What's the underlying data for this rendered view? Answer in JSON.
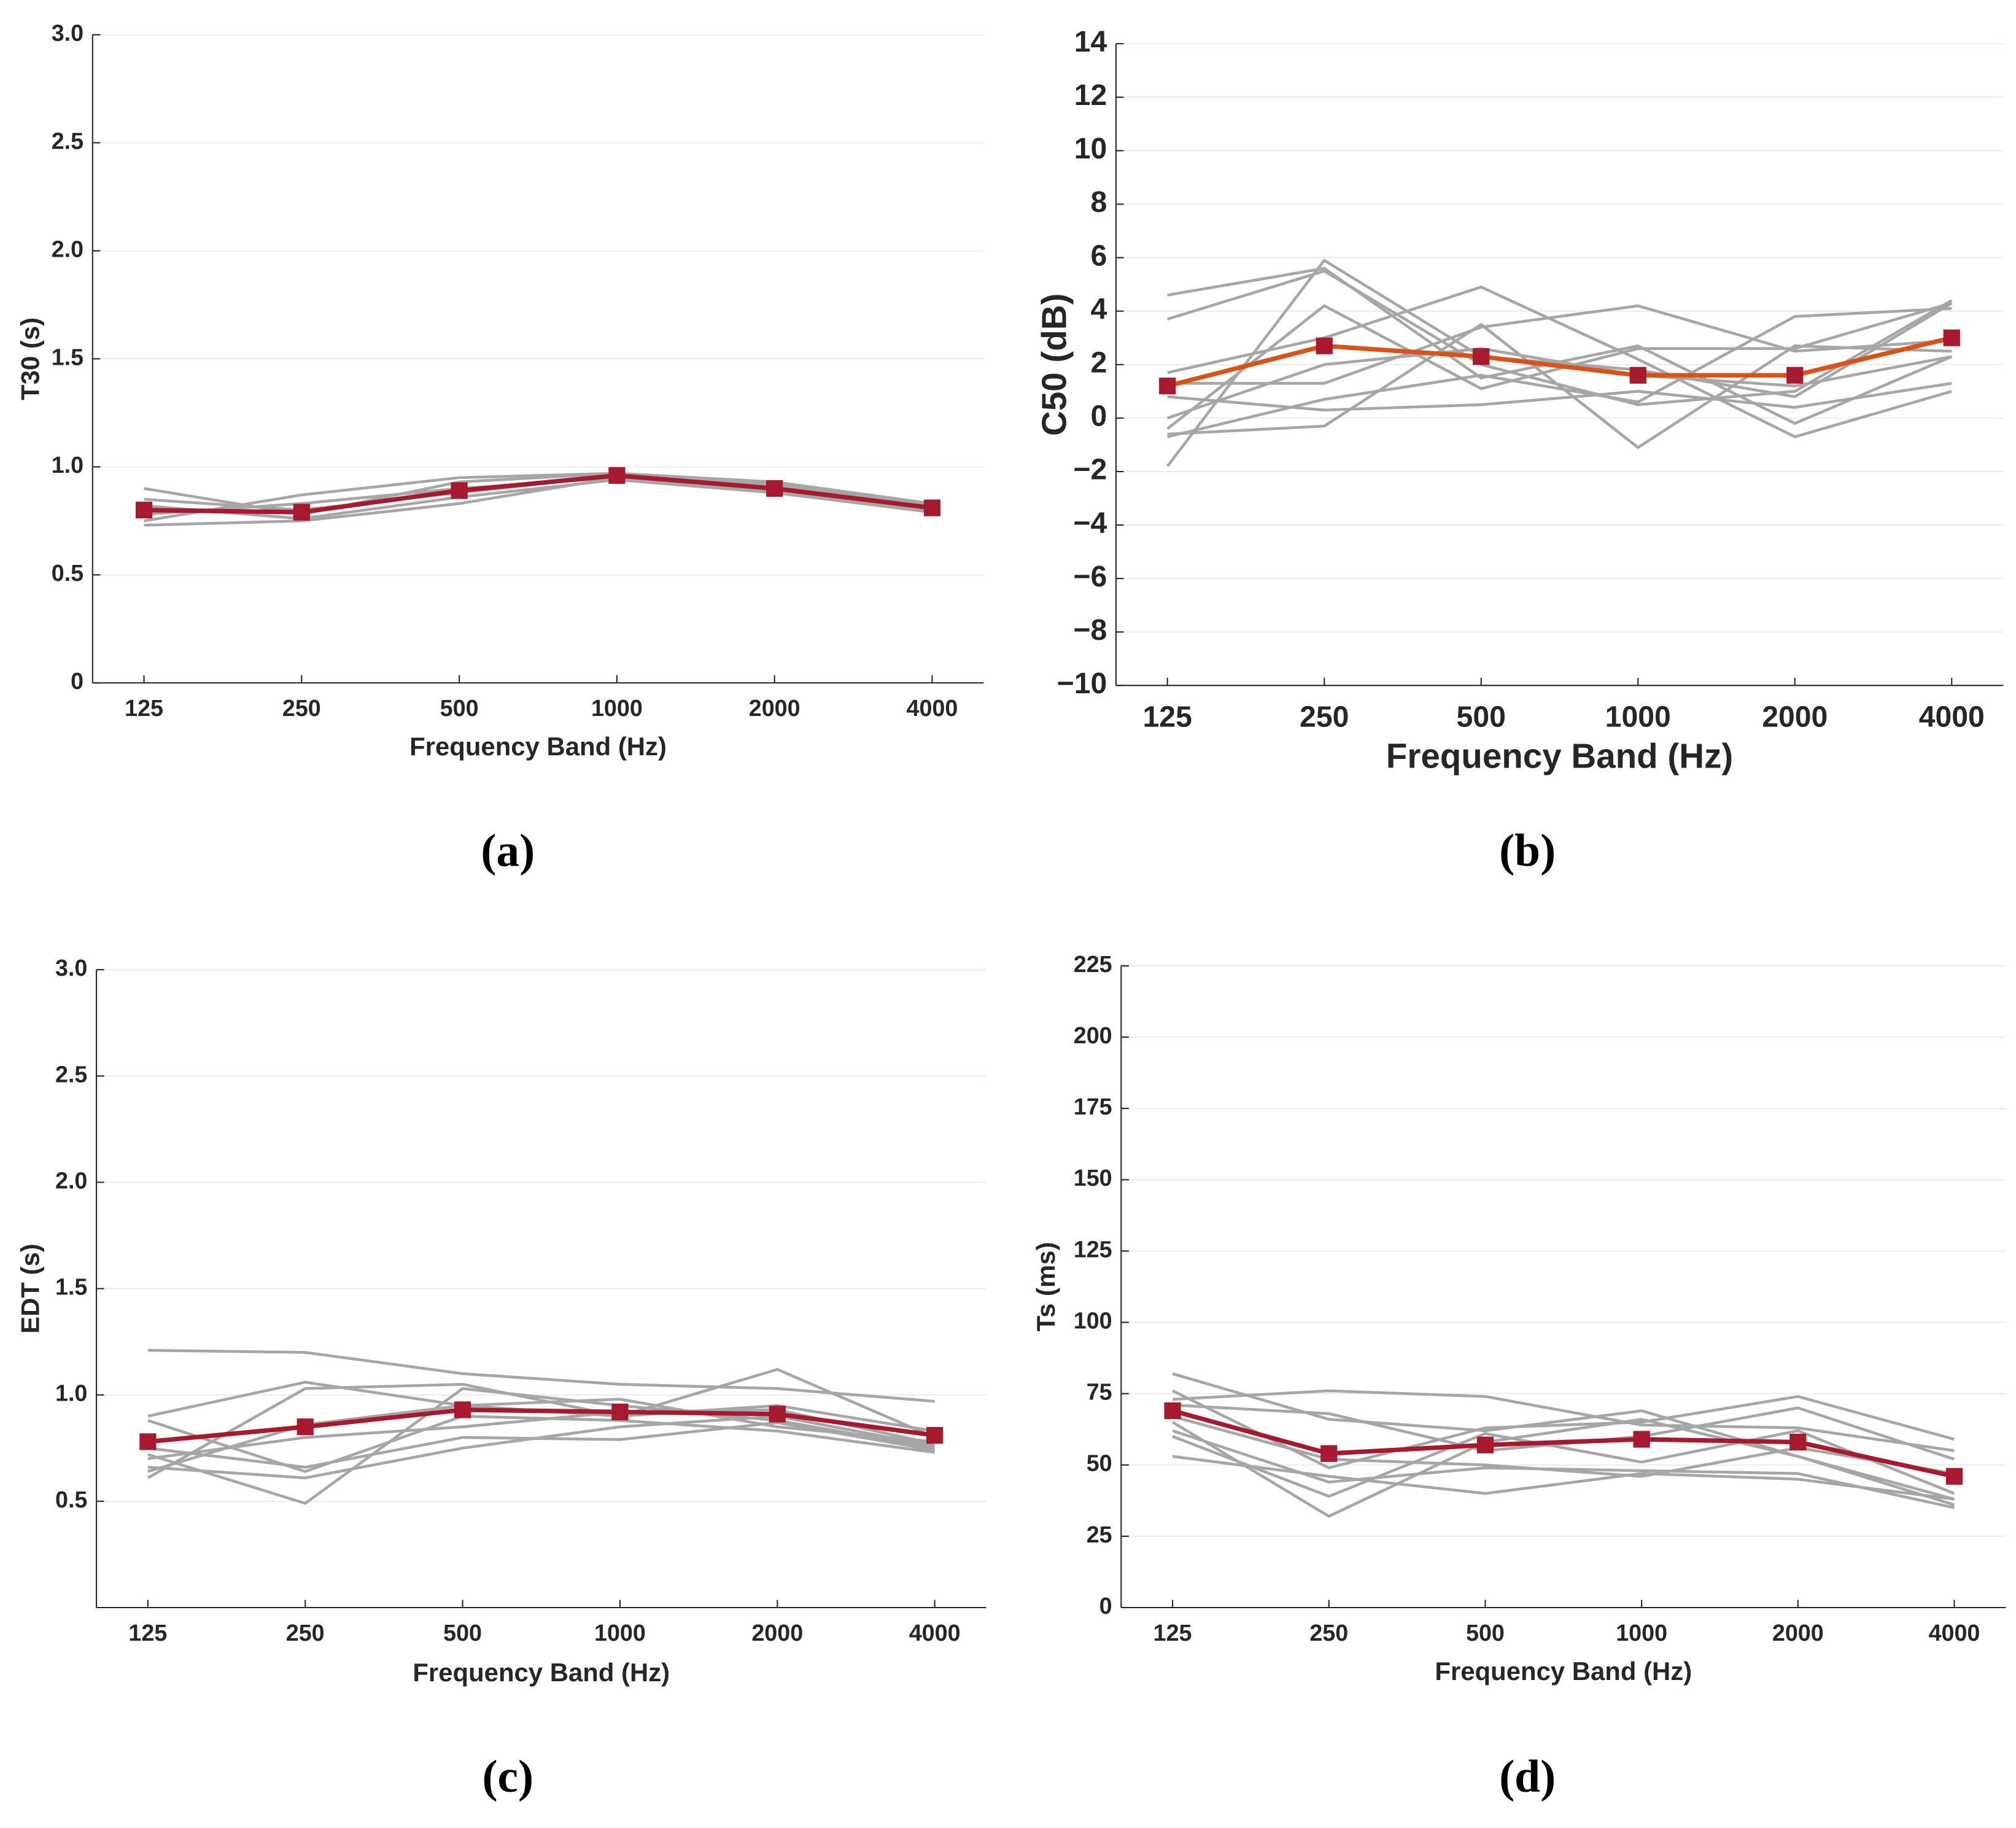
{
  "chart_data": [
    {
      "type": "line",
      "caption": "(a)",
      "x_label": "Frequency Band (Hz)",
      "y_label": "T30 (s)",
      "categories": [
        "125",
        "250",
        "500",
        "1000",
        "2000",
        "4000"
      ],
      "ylim": [
        0,
        3
      ],
      "yticks": [
        0,
        {
          "value": 0.5,
          "label": "0.5"
        },
        {
          "value": 1,
          "label": "1.0"
        },
        {
          "value": 1.5,
          "label": "1.5"
        },
        {
          "value": 2,
          "label": "2.0"
        },
        {
          "value": 2.5,
          "label": "2.5"
        },
        {
          "value": 3,
          "label": "3.0"
        }
      ],
      "grid": true,
      "series": [
        {
          "color": "#a6a6a6",
          "values": [
            0.9,
            0.78,
            0.93,
            0.97,
            0.93,
            0.83
          ]
        },
        {
          "color": "#a6a6a6",
          "values": [
            0.73,
            0.75,
            0.83,
            0.95,
            0.89,
            0.8
          ]
        },
        {
          "color": "#a6a6a6",
          "values": [
            0.75,
            0.87,
            0.95,
            0.97,
            0.92,
            0.82
          ]
        },
        {
          "color": "#a6a6a6",
          "values": [
            0.85,
            0.8,
            0.88,
            0.96,
            0.9,
            0.81
          ]
        },
        {
          "color": "#a6a6a6",
          "values": [
            0.78,
            0.83,
            0.9,
            0.95,
            0.91,
            0.8
          ]
        },
        {
          "color": "#a6a6a6",
          "values": [
            0.82,
            0.76,
            0.86,
            0.94,
            0.88,
            0.79
          ]
        },
        {
          "color": "#a6192e",
          "marker": "square",
          "marker_color": "#a6192e",
          "values": [
            0.8,
            0.79,
            0.89,
            0.96,
            0.9,
            0.81
          ]
        }
      ]
    },
    {
      "type": "line",
      "caption": "(b)",
      "x_label": "Frequency Band (Hz)",
      "y_label": "C50 (dB)",
      "categories": [
        "125",
        "250",
        "500",
        "1000",
        "2000",
        "4000"
      ],
      "ylim": [
        -10,
        14
      ],
      "yticks": [
        {
          "value": -10,
          "label": "−10"
        },
        {
          "value": -8,
          "label": "−8"
        },
        {
          "value": -6,
          "label": "−6"
        },
        {
          "value": -4,
          "label": "−4"
        },
        {
          "value": -2,
          "label": "−2"
        },
        0,
        2,
        4,
        6,
        8,
        10,
        12,
        14
      ],
      "grid": true,
      "series": [
        {
          "color": "#a6a6a6",
          "values": [
            4.6,
            5.6,
            1.5,
            2.7,
            -0.2,
            2.3
          ]
        },
        {
          "color": "#a6a6a6",
          "values": [
            3.7,
            5.5,
            2.0,
            0.5,
            1.0,
            4.4
          ]
        },
        {
          "color": "#a6a6a6",
          "values": [
            -1.8,
            5.9,
            2.3,
            1.8,
            0.8,
            4.3
          ]
        },
        {
          "color": "#a6a6a6",
          "values": [
            -0.4,
            4.2,
            1.1,
            2.6,
            2.6,
            4.3
          ]
        },
        {
          "color": "#a6a6a6",
          "values": [
            0.8,
            0.3,
            0.5,
            1.0,
            0.4,
            1.3
          ]
        },
        {
          "color": "#a6a6a6",
          "values": [
            -0.6,
            -0.3,
            3.5,
            -1.1,
            2.7,
            2.5
          ]
        },
        {
          "color": "#a6a6a6",
          "values": [
            1.7,
            3.0,
            4.9,
            2.2,
            -0.7,
            1.0
          ]
        },
        {
          "color": "#a6a6a6",
          "values": [
            1.3,
            1.3,
            3.4,
            4.2,
            2.5,
            2.9
          ]
        },
        {
          "color": "#a6a6a6",
          "values": [
            -0.7,
            0.7,
            1.6,
            0.6,
            3.8,
            4.1
          ]
        },
        {
          "color": "#a6a6a6",
          "values": [
            0.0,
            2.0,
            2.6,
            1.6,
            1.2,
            2.3
          ]
        },
        {
          "color": "#d95319",
          "marker": "square",
          "marker_color": "#a6192e",
          "values": [
            1.2,
            2.7,
            2.3,
            1.6,
            1.6,
            3.0
          ]
        }
      ]
    },
    {
      "type": "line",
      "caption": "(c)",
      "x_label": "Frequency Band (Hz)",
      "y_label": "EDT (s)",
      "categories": [
        "125",
        "250",
        "500",
        "1000",
        "2000",
        "4000"
      ],
      "ylim": [
        0,
        3
      ],
      "yticks": [
        {
          "value": 0.5,
          "label": "0.5"
        },
        {
          "value": 1,
          "label": "1.0"
        },
        {
          "value": 1.5,
          "label": "1.5"
        },
        {
          "value": 2,
          "label": "2.0"
        },
        {
          "value": 2.5,
          "label": "2.5"
        },
        {
          "value": 3,
          "label": "3.0"
        }
      ],
      "grid": true,
      "series": [
        {
          "color": "#a6a6a6",
          "values": [
            1.21,
            1.2,
            1.1,
            1.05,
            1.03,
            0.97
          ]
        },
        {
          "color": "#a6a6a6",
          "values": [
            0.9,
            1.06,
            0.95,
            0.98,
            0.85,
            0.78
          ]
        },
        {
          "color": "#a6a6a6",
          "values": [
            0.61,
            1.03,
            1.05,
            0.9,
            1.12,
            0.8
          ]
        },
        {
          "color": "#a6a6a6",
          "values": [
            0.72,
            0.49,
            1.03,
            0.95,
            0.88,
            0.75
          ]
        },
        {
          "color": "#a6a6a6",
          "values": [
            0.88,
            0.64,
            0.9,
            0.88,
            0.83,
            0.73
          ]
        },
        {
          "color": "#a6a6a6",
          "values": [
            0.66,
            0.61,
            0.75,
            0.85,
            0.9,
            0.76
          ]
        },
        {
          "color": "#a6a6a6",
          "values": [
            0.75,
            0.66,
            0.8,
            0.79,
            0.87,
            0.74
          ]
        },
        {
          "color": "#a6a6a6",
          "values": [
            0.7,
            0.8,
            0.85,
            0.92,
            0.93,
            0.77
          ]
        },
        {
          "color": "#a6a6a6",
          "values": [
            0.64,
            0.86,
            0.95,
            0.9,
            0.95,
            0.83
          ]
        },
        {
          "color": "#a6192e",
          "marker": "square",
          "marker_color": "#a6192e",
          "values": [
            0.78,
            0.85,
            0.93,
            0.92,
            0.91,
            0.81
          ]
        }
      ]
    },
    {
      "type": "line",
      "caption": "(d)",
      "x_label": "Frequency Band (Hz)",
      "y_label": "Ts (ms)",
      "categories": [
        "125",
        "250",
        "500",
        "1000",
        "2000",
        "4000"
      ],
      "ylim": [
        0,
        225
      ],
      "yticks": [
        0,
        25,
        50,
        75,
        100,
        125,
        150,
        175,
        200,
        225
      ],
      "grid": true,
      "series": [
        {
          "color": "#a6a6a6",
          "values": [
            82,
            66,
            62,
            69,
            53,
            38
          ]
        },
        {
          "color": "#a6a6a6",
          "values": [
            76,
            49,
            63,
            65,
            74,
            59
          ]
        },
        {
          "color": "#a6a6a6",
          "values": [
            73,
            76,
            74,
            64,
            63,
            55
          ]
        },
        {
          "color": "#a6a6a6",
          "values": [
            71,
            68,
            55,
            60,
            70,
            52
          ]
        },
        {
          "color": "#a6a6a6",
          "values": [
            65,
            32,
            58,
            66,
            53,
            36
          ]
        },
        {
          "color": "#a6a6a6",
          "values": [
            62,
            44,
            49,
            48,
            47,
            35
          ]
        },
        {
          "color": "#a6a6a6",
          "values": [
            60,
            39,
            61,
            51,
            62,
            40
          ]
        },
        {
          "color": "#a6a6a6",
          "values": [
            53,
            46,
            40,
            47,
            45,
            38
          ]
        },
        {
          "color": "#a6a6a6",
          "values": [
            67,
            52,
            50,
            46,
            56,
            47
          ]
        },
        {
          "color": "#a6192e",
          "marker": "square",
          "marker_color": "#a6192e",
          "values": [
            69,
            54,
            57,
            59,
            58,
            46
          ]
        }
      ]
    }
  ]
}
